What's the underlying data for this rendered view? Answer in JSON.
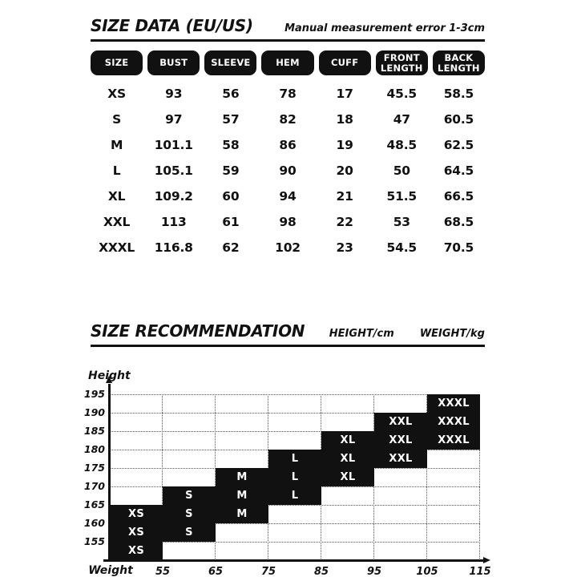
{
  "colors": {
    "ink": "#111111",
    "background": "#ffffff",
    "cell_bg": "#111111",
    "cell_text": "#ffffff"
  },
  "chart_data": [
    {
      "type": "table",
      "title": "SIZE DATA (EU/US)",
      "note": "Manual measurement error 1-3cm",
      "columns": [
        "SIZE",
        "BUST",
        "SLEEVE",
        "HEM",
        "CUFF",
        "FRONT LENGTH",
        "BACK LENGTH"
      ],
      "rows": [
        [
          "XS",
          "93",
          "56",
          "78",
          "17",
          "45.5",
          "58.5"
        ],
        [
          "S",
          "97",
          "57",
          "82",
          "18",
          "47",
          "60.5"
        ],
        [
          "M",
          "101.1",
          "58",
          "86",
          "19",
          "48.5",
          "62.5"
        ],
        [
          "L",
          "105.1",
          "59",
          "90",
          "20",
          "50",
          "64.5"
        ],
        [
          "XL",
          "109.2",
          "60",
          "94",
          "21",
          "51.5",
          "66.5"
        ],
        [
          "XXL",
          "113",
          "61",
          "98",
          "22",
          "53",
          "68.5"
        ],
        [
          "XXXL",
          "116.8",
          "62",
          "102",
          "23",
          "54.5",
          "70.5"
        ]
      ]
    },
    {
      "type": "heatmap",
      "title": "SIZE RECOMMENDATION",
      "header_unit_labels": [
        "HEIGHT/cm",
        "WEIGHT/kg"
      ],
      "y_axis_label": "Height",
      "x_axis_label": "Weight",
      "x_ticks": [
        "55",
        "65",
        "75",
        "85",
        "95",
        "105",
        "115"
      ],
      "y_ticks_top_to_bottom": [
        "195",
        "190",
        "185",
        "180",
        "175",
        "170",
        "165",
        "160",
        "155"
      ],
      "n_cols": 7,
      "n_rows": 9,
      "grid_style": "dotted",
      "legend_position": "none",
      "cells": [
        {
          "row": 0,
          "col": 6,
          "label": "XXXL",
          "height_band": "190-195",
          "weight_band": "105-115"
        },
        {
          "row": 1,
          "col": 5,
          "label": "XXL",
          "height_band": "185-190",
          "weight_band": "95-105"
        },
        {
          "row": 1,
          "col": 6,
          "label": "XXXL",
          "height_band": "185-190",
          "weight_band": "105-115"
        },
        {
          "row": 2,
          "col": 4,
          "label": "XL",
          "height_band": "180-185",
          "weight_band": "85-95"
        },
        {
          "row": 2,
          "col": 5,
          "label": "XXL",
          "height_band": "180-185",
          "weight_band": "95-105"
        },
        {
          "row": 2,
          "col": 6,
          "label": "XXXL",
          "height_band": "180-185",
          "weight_band": "105-115"
        },
        {
          "row": 3,
          "col": 3,
          "label": "L",
          "height_band": "175-180",
          "weight_band": "75-85"
        },
        {
          "row": 3,
          "col": 4,
          "label": "XL",
          "height_band": "175-180",
          "weight_band": "85-95"
        },
        {
          "row": 3,
          "col": 5,
          "label": "XXL",
          "height_band": "175-180",
          "weight_band": "95-105"
        },
        {
          "row": 4,
          "col": 2,
          "label": "M",
          "height_band": "170-175",
          "weight_band": "65-75"
        },
        {
          "row": 4,
          "col": 3,
          "label": "L",
          "height_band": "170-175",
          "weight_band": "75-85"
        },
        {
          "row": 4,
          "col": 4,
          "label": "XL",
          "height_band": "170-175",
          "weight_band": "85-95"
        },
        {
          "row": 5,
          "col": 1,
          "label": "S",
          "height_band": "165-170",
          "weight_band": "55-65"
        },
        {
          "row": 5,
          "col": 2,
          "label": "M",
          "height_band": "165-170",
          "weight_band": "65-75"
        },
        {
          "row": 5,
          "col": 3,
          "label": "L",
          "height_band": "165-170",
          "weight_band": "75-85"
        },
        {
          "row": 6,
          "col": 0,
          "label": "XS",
          "height_band": "160-165",
          "weight_band": "<55"
        },
        {
          "row": 6,
          "col": 1,
          "label": "S",
          "height_band": "160-165",
          "weight_band": "55-65"
        },
        {
          "row": 6,
          "col": 2,
          "label": "M",
          "height_band": "160-165",
          "weight_band": "65-75"
        },
        {
          "row": 7,
          "col": 0,
          "label": "XS",
          "height_band": "155-160",
          "weight_band": "<55"
        },
        {
          "row": 7,
          "col": 1,
          "label": "S",
          "height_band": "155-160",
          "weight_band": "55-65"
        },
        {
          "row": 8,
          "col": 0,
          "label": "XS",
          "height_band": "150-155",
          "weight_band": "<55"
        }
      ]
    }
  ]
}
